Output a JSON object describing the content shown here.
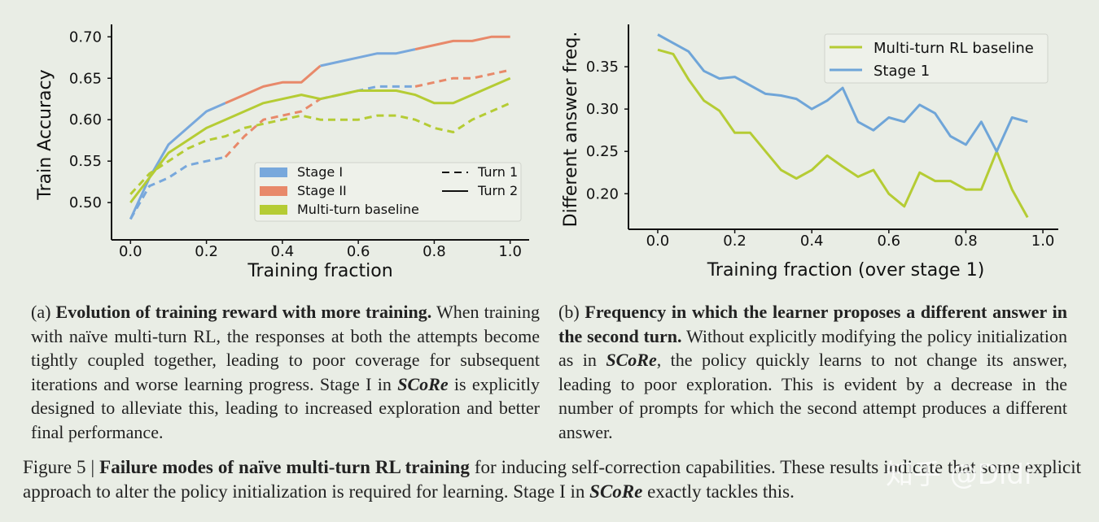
{
  "chart_data": [
    {
      "type": "line",
      "ylabel": "Train Accuracy",
      "xlabel": "Training fraction",
      "xlim": [
        -0.05,
        1.05
      ],
      "ylim": [
        0.455,
        0.715
      ],
      "xticks": [
        {
          "value": 0,
          "label": "0.0"
        },
        0.2,
        0.4,
        0.6,
        0.8,
        {
          "value": 1,
          "label": "1.0"
        }
      ],
      "yticks": [
        {
          "value": 0.5,
          "label": "0.50"
        },
        0.55,
        {
          "value": 0.6,
          "label": "0.60"
        },
        0.65,
        {
          "value": 0.7,
          "label": "0.70"
        }
      ],
      "legend": "lower right",
      "line_styles": [
        {
          "name": "Turn 1",
          "dash": "9 6"
        },
        {
          "name": "Turn 2",
          "dash": "none"
        }
      ],
      "x": [
        0,
        0.05,
        0.1,
        0.15,
        0.2,
        0.25,
        0.3,
        0.35,
        0.4,
        0.45,
        0.5,
        0.55,
        0.6,
        0.65,
        0.7,
        0.75,
        0.8,
        0.85,
        0.9,
        0.95,
        1.0
      ],
      "series": [
        {
          "name": "Stage I",
          "color": "#78a8dc",
          "turn_values": [
            [
              0.48,
              0.52,
              0.53,
              0.545,
              0.55,
              0.555,
              null,
              null,
              null,
              null,
              0.625,
              0.63,
              0.635,
              0.64,
              0.64,
              0.64,
              null,
              null,
              null,
              null,
              null
            ],
            [
              0.48,
              0.53,
              0.57,
              0.59,
              0.61,
              0.62,
              null,
              null,
              null,
              null,
              0.665,
              0.67,
              0.675,
              0.68,
              0.68,
              0.685,
              null,
              null,
              null,
              null,
              null
            ]
          ]
        },
        {
          "name": "Stage II",
          "color": "#e8896a",
          "turn_values": [
            [
              null,
              null,
              null,
              null,
              null,
              0.555,
              0.58,
              0.6,
              0.605,
              0.61,
              0.625,
              null,
              null,
              null,
              null,
              0.64,
              0.645,
              0.65,
              0.65,
              0.655,
              0.66
            ],
            [
              null,
              null,
              null,
              null,
              null,
              0.62,
              0.63,
              0.64,
              0.645,
              0.645,
              0.665,
              null,
              null,
              null,
              null,
              0.685,
              0.69,
              0.695,
              0.695,
              0.7,
              0.7
            ]
          ]
        },
        {
          "name": "Multi-turn baseline",
          "color": "#b5cc34",
          "turn_values": [
            [
              0.51,
              0.535,
              0.55,
              0.565,
              0.575,
              0.58,
              0.59,
              0.595,
              0.6,
              0.605,
              0.6,
              0.6,
              0.6,
              0.605,
              0.605,
              0.6,
              0.59,
              0.585,
              0.6,
              0.61,
              0.62
            ],
            [
              0.5,
              0.53,
              0.56,
              0.575,
              0.59,
              0.6,
              0.61,
              0.62,
              0.625,
              0.63,
              0.625,
              0.63,
              0.635,
              0.635,
              0.635,
              0.63,
              0.62,
              0.62,
              0.63,
              0.64,
              0.65
            ]
          ]
        }
      ]
    },
    {
      "type": "line",
      "ylabel": "Different answer freq.",
      "xlabel": "Training fraction (over stage 1)",
      "xlim": [
        -0.076,
        1.04
      ],
      "ylim": [
        0.158,
        0.4
      ],
      "xticks": [
        {
          "value": 0,
          "label": "0.0"
        },
        0.2,
        0.4,
        0.6,
        0.8,
        {
          "value": 1,
          "label": "1.0"
        }
      ],
      "yticks": [
        {
          "value": 0.2,
          "label": "0.20"
        },
        0.25,
        {
          "value": 0.3,
          "label": "0.30"
        },
        0.35
      ],
      "legend": "upper right",
      "x": [
        0,
        0.04,
        0.08,
        0.12,
        0.16,
        0.2,
        0.24,
        0.28,
        0.32,
        0.36,
        0.4,
        0.44,
        0.48,
        0.52,
        0.56,
        0.6,
        0.64,
        0.68,
        0.72,
        0.76,
        0.8,
        0.84,
        0.88,
        0.92,
        0.96
      ],
      "series": [
        {
          "name": "Multi-turn RL baseline",
          "color": "#b5cc34",
          "values": [
            0.37,
            0.365,
            0.335,
            0.31,
            0.298,
            0.272,
            0.272,
            0.25,
            0.228,
            0.218,
            0.228,
            0.245,
            0.232,
            0.22,
            0.228,
            0.2,
            0.185,
            0.225,
            0.215,
            0.215,
            0.205,
            0.205,
            0.25,
            0.205,
            0.172
          ]
        },
        {
          "name": "Stage 1",
          "color": "#6fa5d8",
          "values": [
            0.388,
            0.378,
            0.368,
            0.345,
            0.336,
            0.338,
            0.328,
            0.318,
            0.316,
            0.312,
            0.3,
            0.31,
            0.325,
            0.285,
            0.275,
            0.29,
            0.285,
            0.305,
            0.295,
            0.268,
            0.258,
            0.285,
            0.25,
            0.29,
            0.285
          ]
        }
      ]
    }
  ],
  "caption_a": {
    "label": "(a)",
    "title": "Evolution of training reward with more training.",
    "text": [
      "When training with naïve multi-turn RL, the responses at both the attempts become tightly coupled together, leading to poor coverage for subsequent iterations and worse learning progress. Stage I in ",
      "SCoRe",
      " is explicitly designed to alleviate this, leading to increased exploration and better final performance."
    ]
  },
  "caption_b": {
    "label": "(b)",
    "title": "Frequency in which the learner proposes a different answer in the second turn.",
    "text": [
      "Without explicitly modifying the policy initialization as in ",
      "SCoRe",
      ", the policy quickly learns to not change its answer, leading to poor exploration. This is evident by a decrease in the number of prompts for which the second attempt produces a different answer."
    ]
  },
  "figure_caption": {
    "label": "Figure 5 |",
    "title": "Failure modes of naïve multi-turn RL training",
    "text": [
      "for inducing self-correction capabilities. These results indicate that some explicit approach to alter the policy initialization is required for learning. Stage I in ",
      "SCoRe",
      " exactly tackles this."
    ]
  },
  "watermark": "知乎 @Didi"
}
